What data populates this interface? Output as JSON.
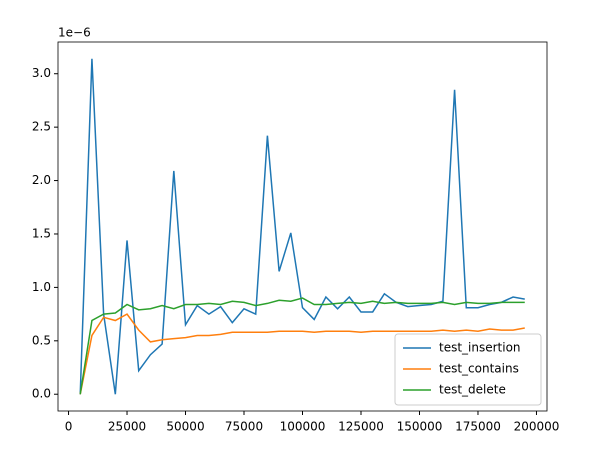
{
  "chart_data": {
    "type": "line",
    "y_offset_label": "1e−6",
    "x": [
      5000,
      10000,
      15000,
      20000,
      25000,
      30000,
      35000,
      40000,
      45000,
      50000,
      55000,
      60000,
      65000,
      70000,
      75000,
      80000,
      85000,
      90000,
      95000,
      100000,
      105000,
      110000,
      115000,
      120000,
      125000,
      130000,
      135000,
      140000,
      145000,
      150000,
      155000,
      160000,
      165000,
      170000,
      175000,
      180000,
      185000,
      190000,
      195000
    ],
    "series": [
      {
        "name": "test_insertion",
        "color": "#1f77b4",
        "values": [
          0,
          3.14,
          0.75,
          0.0,
          1.44,
          0.22,
          0.37,
          0.47,
          2.09,
          0.65,
          0.83,
          0.75,
          0.82,
          0.67,
          0.8,
          0.75,
          2.42,
          1.15,
          1.51,
          0.81,
          0.7,
          0.91,
          0.8,
          0.91,
          0.77,
          0.77,
          0.94,
          0.86,
          0.82,
          0.83,
          0.84,
          0.87,
          2.85,
          0.81,
          0.81,
          0.84,
          0.86,
          0.91,
          0.89
        ]
      },
      {
        "name": "test_contains",
        "color": "#ff7f0e",
        "values": [
          0,
          0.55,
          0.72,
          0.69,
          0.75,
          0.6,
          0.49,
          0.51,
          0.52,
          0.53,
          0.55,
          0.55,
          0.56,
          0.58,
          0.58,
          0.58,
          0.58,
          0.59,
          0.59,
          0.59,
          0.58,
          0.59,
          0.59,
          0.59,
          0.58,
          0.59,
          0.59,
          0.59,
          0.59,
          0.59,
          0.59,
          0.6,
          0.59,
          0.6,
          0.59,
          0.61,
          0.6,
          0.6,
          0.62
        ]
      },
      {
        "name": "test_delete",
        "color": "#2ca02c",
        "values": [
          0,
          0.69,
          0.75,
          0.76,
          0.84,
          0.79,
          0.8,
          0.83,
          0.8,
          0.84,
          0.84,
          0.85,
          0.84,
          0.87,
          0.86,
          0.83,
          0.85,
          0.88,
          0.87,
          0.9,
          0.84,
          0.84,
          0.85,
          0.86,
          0.85,
          0.87,
          0.85,
          0.86,
          0.85,
          0.85,
          0.85,
          0.86,
          0.84,
          0.86,
          0.85,
          0.85,
          0.86,
          0.86,
          0.86
        ]
      }
    ],
    "xlim": [
      -4500,
      204500
    ],
    "ylim": [
      -0.157,
      3.297
    ],
    "xticks": [
      0,
      25000,
      50000,
      75000,
      100000,
      125000,
      150000,
      175000,
      200000
    ],
    "yticks": [
      {
        "value": 0,
        "label": "0.0"
      },
      0.5,
      {
        "value": 1,
        "label": "1.0"
      },
      1.5,
      {
        "value": 2,
        "label": "2.0"
      },
      2.5,
      {
        "value": 3,
        "label": "3.0"
      }
    ],
    "legend": "lower right"
  }
}
